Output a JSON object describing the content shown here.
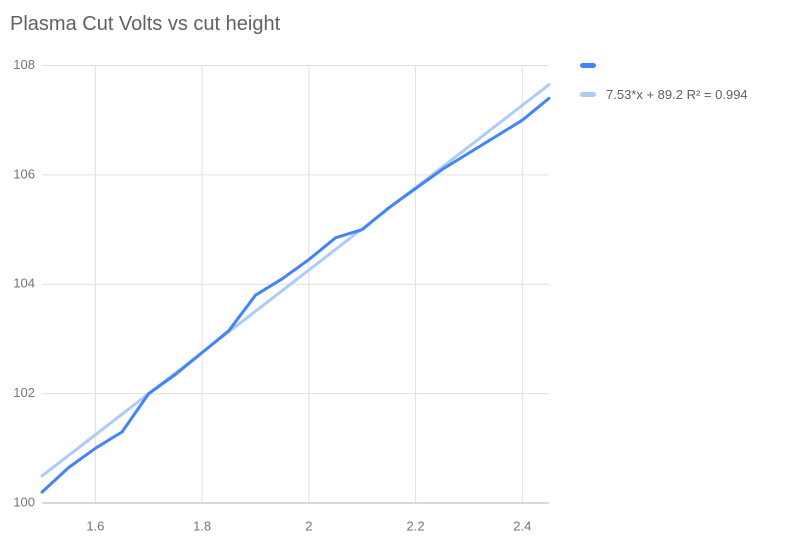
{
  "legend": {
    "series_label": "",
    "trendline_label": "7.53*x + 89.2 R² = 0.994"
  },
  "colors": {
    "background": "#ffffff",
    "series": "#4285F4",
    "trendline": "#AECBFA",
    "grid": "#e0e0e0",
    "axis": "#b5b5b5",
    "title_text": "#616161",
    "tick_text": "#757575",
    "legend_text": "#616161"
  },
  "chart_data": {
    "type": "line",
    "title": "Plasma Cut Volts vs cut height",
    "xlabel": "",
    "ylabel": "",
    "xlim": [
      1.5,
      2.45
    ],
    "ylim": [
      100,
      108
    ],
    "grid": true,
    "legend_position": "top-right",
    "x_ticks": [
      "1.6",
      "1.8",
      "2",
      "2.2",
      "2.4"
    ],
    "x_tick_values": [
      1.6,
      1.8,
      2,
      2.2,
      2.4
    ],
    "y_ticks": [
      "100",
      "102",
      "104",
      "106",
      "108"
    ],
    "y_tick_values": [
      100,
      102,
      104,
      106,
      108
    ],
    "x": [
      1.5,
      1.55,
      1.6,
      1.65,
      1.7,
      1.75,
      1.8,
      1.85,
      1.9,
      1.95,
      2.0,
      2.05,
      2.1,
      2.15,
      2.2,
      2.25,
      2.3,
      2.35,
      2.4,
      2.45
    ],
    "series": [
      {
        "name": "",
        "color": "#4285F4",
        "values": [
          100.2,
          100.65,
          101.0,
          101.3,
          102.0,
          102.35,
          102.75,
          103.15,
          103.8,
          104.1,
          104.45,
          104.85,
          105.0,
          105.4,
          105.75,
          106.1,
          106.4,
          106.7,
          107.0,
          107.4
        ]
      }
    ],
    "trendline": {
      "label": "7.53*x + 89.2 R² = 0.994",
      "slope": 7.53,
      "intercept": 89.2,
      "r2": 0.994,
      "color": "#AECBFA"
    }
  }
}
